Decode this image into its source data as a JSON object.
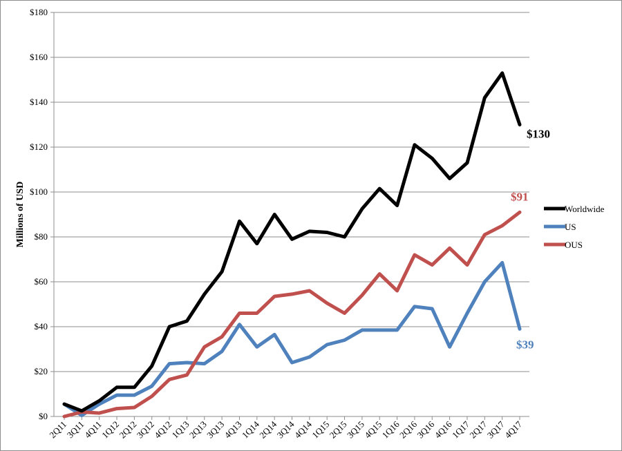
{
  "chart_data": {
    "type": "line",
    "title": "",
    "xlabel": "",
    "ylabel": "Millions of USD",
    "ylim": [
      0,
      180
    ],
    "yticks": [
      0,
      20,
      40,
      60,
      80,
      100,
      120,
      140,
      160,
      180
    ],
    "ytick_labels": [
      "$0",
      "$20",
      "$40",
      "$60",
      "$80",
      "$100",
      "$120",
      "$140",
      "$160",
      "$180"
    ],
    "grid": "horizontal",
    "legend_position": "right",
    "categories": [
      "2Q11",
      "3Q11",
      "4Q11",
      "1Q12",
      "2Q12",
      "3Q12",
      "4Q12",
      "1Q13",
      "2Q13",
      "3Q13",
      "4Q13",
      "1Q14",
      "2Q14",
      "3Q14",
      "4Q14",
      "1Q15",
      "2Q15",
      "3Q15",
      "4Q15",
      "1Q16",
      "2Q16",
      "3Q16",
      "4Q16",
      "1Q17",
      "2Q17",
      "3Q17",
      "4Q17"
    ],
    "series": [
      {
        "name": "Worldwide",
        "color": "#000000",
        "end_label": "$130",
        "values": [
          5.5,
          2.5,
          7,
          13,
          13,
          22.5,
          40,
          42.5,
          54.5,
          64.5,
          87,
          77,
          90,
          79,
          82.5,
          82,
          80,
          92.5,
          101.5,
          94,
          121,
          115,
          106,
          113,
          142,
          153,
          130
        ]
      },
      {
        "name": "US",
        "color": "#4f81bd",
        "end_label": "$39",
        "values": [
          5.5,
          0.5,
          5.5,
          9.5,
          9.5,
          13.5,
          23.5,
          24,
          23.5,
          29,
          41,
          31,
          36.5,
          24,
          26.5,
          32,
          34,
          38.5,
          38.5,
          38.5,
          49,
          48,
          31,
          46,
          60,
          68.5,
          39
        ]
      },
      {
        "name": "OUS",
        "color": "#c0504d",
        "end_label": "$91",
        "values": [
          0,
          2,
          1.5,
          3.5,
          4,
          9,
          16.5,
          18.5,
          31,
          35.5,
          46,
          46,
          53.5,
          54.5,
          56,
          50.5,
          46,
          54,
          63.5,
          56,
          72,
          67.5,
          75,
          67.5,
          81,
          85,
          91
        ]
      }
    ]
  }
}
